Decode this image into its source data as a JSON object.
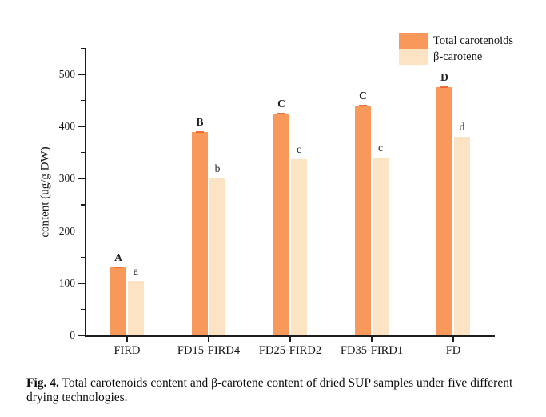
{
  "figure": {
    "caption_label": "Fig. 4.",
    "caption_text": "Total carotenoids content and β-carotene content of dried SUP samples under five different drying technologies."
  },
  "chart_data": {
    "type": "bar",
    "title": "",
    "categories": [
      "FIRD",
      "FD15-FIRD4",
      "FD25-FIRD2",
      "FD35-FIRD1",
      "FD"
    ],
    "series": [
      {
        "name": "Total carotenoids",
        "values": [
          130,
          390,
          425,
          440,
          475
        ],
        "sig_labels": [
          "A",
          "B",
          "C",
          "C",
          "D"
        ],
        "color": "#f8985a"
      },
      {
        "name": "β-carotene",
        "values": [
          105,
          300,
          337,
          340,
          380
        ],
        "sig_labels": [
          "a",
          "b",
          "c",
          "c",
          "d"
        ],
        "color": "#fbe3c4"
      }
    ],
    "xlabel": "",
    "ylabel": "content (ug/g DW)",
    "ylim": [
      0,
      550
    ],
    "yticks": [
      0,
      100,
      200,
      300,
      400,
      500
    ],
    "yticks_minor": [
      50,
      150,
      250,
      350,
      450,
      550
    ],
    "legend_position": "top-right",
    "grid": false
  },
  "colors": {
    "total_bar": "#f8985a",
    "beta_bar": "#fbe3c4",
    "error_cap": "#ef6c33",
    "axis": "#1c1c1c"
  }
}
